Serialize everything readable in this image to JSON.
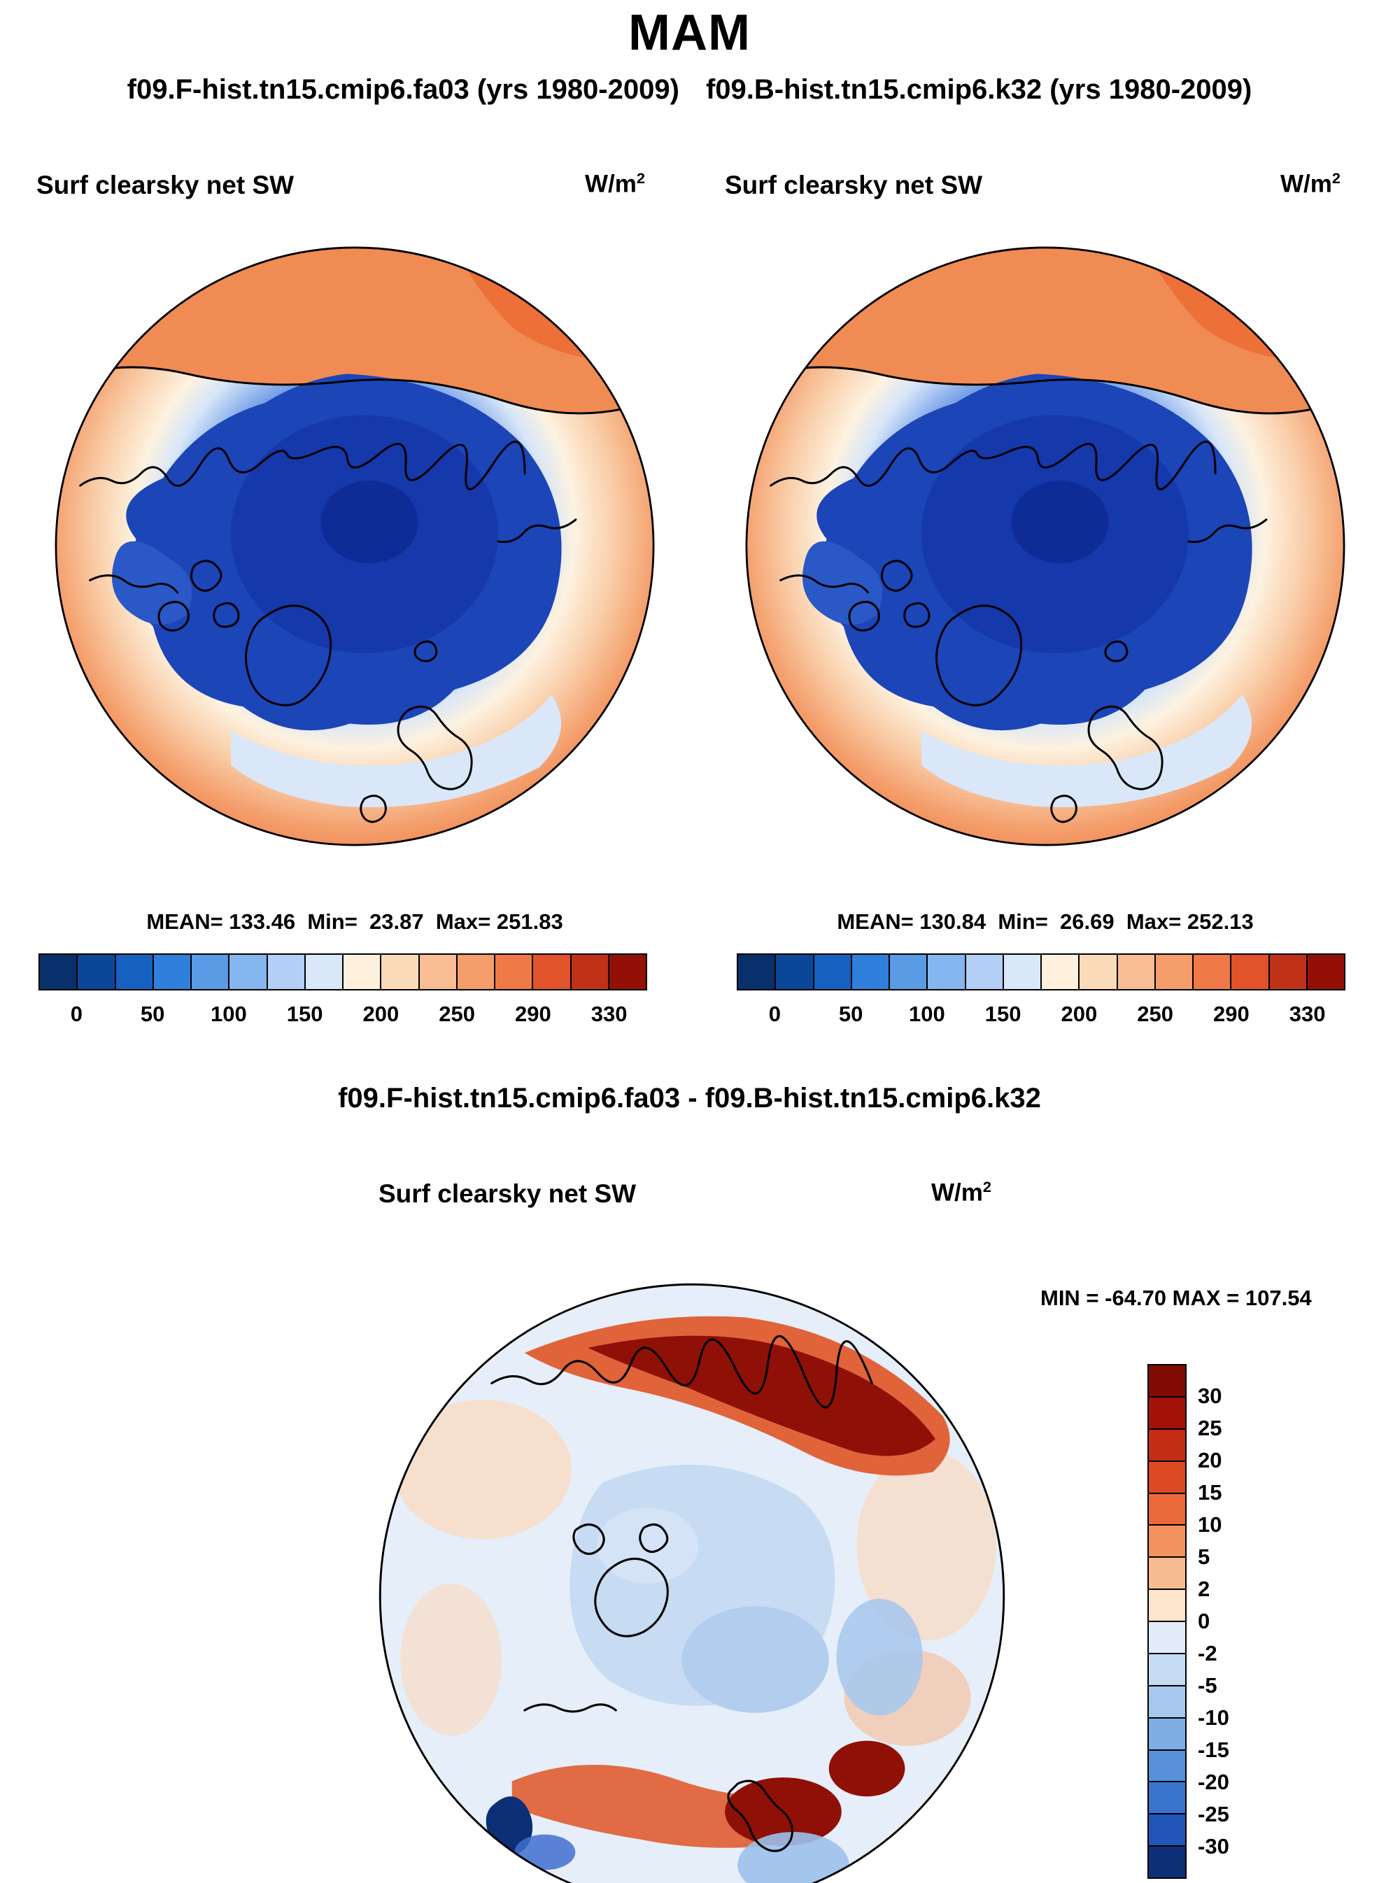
{
  "title": "MAM",
  "header": {
    "run_left": "f09.F-hist.tn15.cmip6.fa03 (yrs 1980-2009)",
    "run_right": "f09.B-hist.tn15.cmip6.k32 (yrs 1980-2009)"
  },
  "panel_left": {
    "var_label": "Surf clearsky net SW",
    "units_base": "W/m",
    "units_exp": "2",
    "stats": "MEAN= 133.46  Min=  23.87  Max= 251.83"
  },
  "panel_right": {
    "var_label": "Surf clearsky net SW",
    "units_base": "W/m",
    "units_exp": "2",
    "stats": "MEAN= 130.84  Min=  26.69  Max= 252.13"
  },
  "panel_diff": {
    "title": "f09.F-hist.tn15.cmip6.fa03 - f09.B-hist.tn15.cmip6.k32",
    "var_label": "Surf clearsky net SW",
    "units_base": "W/m",
    "units_exp": "2",
    "minmax": "MIN = -64.70 MAX = 107.54"
  },
  "colorbar_sw": {
    "colors": [
      "#08306b",
      "#0a4798",
      "#1660c0",
      "#2f7fdc",
      "#5a9be6",
      "#86b6ee",
      "#b2cff5",
      "#d9e7f9",
      "#fdf1de",
      "#fbdaba",
      "#f8bd93",
      "#f59d6b",
      "#ef7a47",
      "#e1532a",
      "#bf3218",
      "#931006"
    ],
    "ticks": [
      "0",
      "50",
      "100",
      "150",
      "200",
      "250",
      "290",
      "330"
    ]
  },
  "colorbar_diff": {
    "colors": [
      "#7f0b04",
      "#a31208",
      "#c22d14",
      "#dd4a24",
      "#ea6a3c",
      "#f1925f",
      "#f7bb92",
      "#fce4cd",
      "#e2ecf8",
      "#c6dcf3",
      "#a5c8ec",
      "#7faee4",
      "#5890da",
      "#3a74cf",
      "#2156b8",
      "#0c2f76"
    ],
    "ticks": [
      "30",
      "25",
      "20",
      "15",
      "10",
      "5",
      "2",
      "0",
      "-2",
      "-5",
      "-10",
      "-15",
      "-20",
      "-25",
      "-30"
    ]
  },
  "chart_data": [
    {
      "type": "heatmap",
      "subtype": "north-polar-stereographic-map",
      "season": "MAM",
      "title": "Surf clearsky net SW — f09.F-hist.tn15.cmip6.fa03 (yrs 1980-2009)",
      "units": "W/m2",
      "stats": {
        "mean": 133.46,
        "min": 23.87,
        "max": 251.83
      },
      "colorbar_levels": [
        0,
        25,
        50,
        75,
        100,
        125,
        150,
        175,
        200,
        225,
        250,
        270,
        290,
        310,
        330
      ],
      "colorbar_tick_labels": [
        0,
        50,
        100,
        150,
        200,
        250,
        290,
        330
      ],
      "legend_position": "bottom",
      "palette": "blue-to-red, low SW (blue) over Arctic ice/ocean, high SW (orange/red) toward outer mid-latitudes"
    },
    {
      "type": "heatmap",
      "subtype": "north-polar-stereographic-map",
      "season": "MAM",
      "title": "Surf clearsky net SW — f09.B-hist.tn15.cmip6.k32 (yrs 1980-2009)",
      "units": "W/m2",
      "stats": {
        "mean": 130.84,
        "min": 26.69,
        "max": 252.13
      },
      "colorbar_levels": [
        0,
        25,
        50,
        75,
        100,
        125,
        150,
        175,
        200,
        225,
        250,
        270,
        290,
        310,
        330
      ],
      "colorbar_tick_labels": [
        0,
        50,
        100,
        150,
        200,
        250,
        290,
        330
      ],
      "legend_position": "bottom",
      "palette": "blue-to-red, low SW (blue) over Arctic ice/ocean, high SW (orange/red) toward outer mid-latitudes"
    },
    {
      "type": "heatmap",
      "subtype": "north-polar-stereographic-map difference",
      "season": "MAM",
      "title": "Surf clearsky net SW — f09.F-hist.tn15.cmip6.fa03 - f09.B-hist.tn15.cmip6.k32",
      "units": "W/m2",
      "stats": {
        "min": -64.7,
        "max": 107.54
      },
      "colorbar_levels": [
        -30,
        -25,
        -20,
        -15,
        -10,
        -5,
        -2,
        0,
        2,
        5,
        10,
        15,
        20,
        25,
        30
      ],
      "legend_position": "right",
      "palette": "diverging blue-white-red; strong positive (dark red) along Siberian coast and Barents/Kara seas, negative (blue) streaks near North Atlantic"
    }
  ]
}
